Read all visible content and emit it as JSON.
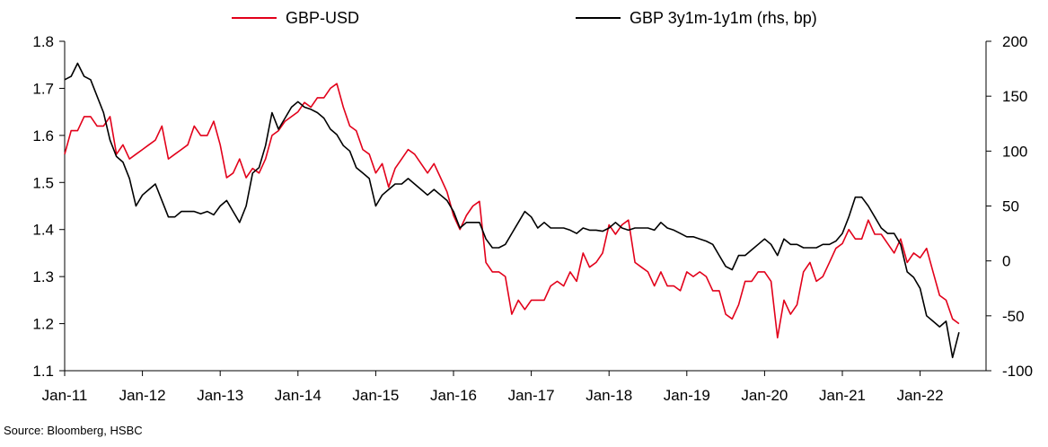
{
  "chart_data": {
    "type": "line",
    "title": "",
    "grid": false,
    "legend_position": "top-center",
    "x_range": [
      "2011-01",
      "2022-08"
    ],
    "x_ticks": [
      "Jan-11",
      "Jan-12",
      "Jan-13",
      "Jan-14",
      "Jan-15",
      "Jan-16",
      "Jan-17",
      "Jan-18",
      "Jan-19",
      "Jan-20",
      "Jan-21",
      "Jan-22"
    ],
    "y_left": {
      "label": "",
      "min": 1.1,
      "max": 1.8,
      "ticks": [
        "1.8",
        "1.7",
        "1.6",
        "1.5",
        "1.4",
        "1.3",
        "1.2",
        "1.1"
      ]
    },
    "y_right": {
      "label": "",
      "min": -100,
      "max": 200,
      "ticks": [
        "200",
        "150",
        "100",
        "50",
        "0",
        "-50",
        "-100"
      ]
    },
    "series": [
      {
        "name": "GBP-USD",
        "axis": "left",
        "color": "#e2001a",
        "points": [
          [
            "2011-01",
            1.56
          ],
          [
            "2011-02",
            1.61
          ],
          [
            "2011-03",
            1.61
          ],
          [
            "2011-04",
            1.64
          ],
          [
            "2011-05",
            1.64
          ],
          [
            "2011-06",
            1.62
          ],
          [
            "2011-07",
            1.62
          ],
          [
            "2011-08",
            1.64
          ],
          [
            "2011-09",
            1.56
          ],
          [
            "2011-10",
            1.58
          ],
          [
            "2011-11",
            1.55
          ],
          [
            "2011-12",
            1.56
          ],
          [
            "2012-01",
            1.57
          ],
          [
            "2012-02",
            1.58
          ],
          [
            "2012-03",
            1.59
          ],
          [
            "2012-04",
            1.62
          ],
          [
            "2012-05",
            1.55
          ],
          [
            "2012-06",
            1.56
          ],
          [
            "2012-07",
            1.57
          ],
          [
            "2012-08",
            1.58
          ],
          [
            "2012-09",
            1.62
          ],
          [
            "2012-10",
            1.6
          ],
          [
            "2012-11",
            1.6
          ],
          [
            "2012-12",
            1.63
          ],
          [
            "2013-01",
            1.58
          ],
          [
            "2013-02",
            1.51
          ],
          [
            "2013-03",
            1.52
          ],
          [
            "2013-04",
            1.55
          ],
          [
            "2013-05",
            1.51
          ],
          [
            "2013-06",
            1.53
          ],
          [
            "2013-07",
            1.52
          ],
          [
            "2013-08",
            1.55
          ],
          [
            "2013-09",
            1.6
          ],
          [
            "2013-10",
            1.61
          ],
          [
            "2013-11",
            1.63
          ],
          [
            "2013-12",
            1.64
          ],
          [
            "2014-01",
            1.65
          ],
          [
            "2014-02",
            1.67
          ],
          [
            "2014-03",
            1.66
          ],
          [
            "2014-04",
            1.68
          ],
          [
            "2014-05",
            1.68
          ],
          [
            "2014-06",
            1.7
          ],
          [
            "2014-07",
            1.71
          ],
          [
            "2014-08",
            1.66
          ],
          [
            "2014-09",
            1.62
          ],
          [
            "2014-10",
            1.61
          ],
          [
            "2014-11",
            1.57
          ],
          [
            "2014-12",
            1.56
          ],
          [
            "2015-01",
            1.52
          ],
          [
            "2015-02",
            1.54
          ],
          [
            "2015-03",
            1.49
          ],
          [
            "2015-04",
            1.53
          ],
          [
            "2015-05",
            1.55
          ],
          [
            "2015-06",
            1.57
          ],
          [
            "2015-07",
            1.56
          ],
          [
            "2015-08",
            1.54
          ],
          [
            "2015-09",
            1.52
          ],
          [
            "2015-10",
            1.54
          ],
          [
            "2015-11",
            1.51
          ],
          [
            "2015-12",
            1.48
          ],
          [
            "2016-01",
            1.43
          ],
          [
            "2016-02",
            1.4
          ],
          [
            "2016-03",
            1.43
          ],
          [
            "2016-04",
            1.45
          ],
          [
            "2016-05",
            1.46
          ],
          [
            "2016-06",
            1.33
          ],
          [
            "2016-07",
            1.31
          ],
          [
            "2016-08",
            1.31
          ],
          [
            "2016-09",
            1.3
          ],
          [
            "2016-10",
            1.22
          ],
          [
            "2016-11",
            1.25
          ],
          [
            "2016-12",
            1.23
          ],
          [
            "2017-01",
            1.25
          ],
          [
            "2017-02",
            1.25
          ],
          [
            "2017-03",
            1.25
          ],
          [
            "2017-04",
            1.28
          ],
          [
            "2017-05",
            1.29
          ],
          [
            "2017-06",
            1.28
          ],
          [
            "2017-07",
            1.31
          ],
          [
            "2017-08",
            1.29
          ],
          [
            "2017-09",
            1.35
          ],
          [
            "2017-10",
            1.32
          ],
          [
            "2017-11",
            1.33
          ],
          [
            "2017-12",
            1.35
          ],
          [
            "2018-01",
            1.41
          ],
          [
            "2018-02",
            1.39
          ],
          [
            "2018-03",
            1.41
          ],
          [
            "2018-04",
            1.42
          ],
          [
            "2018-05",
            1.33
          ],
          [
            "2018-06",
            1.32
          ],
          [
            "2018-07",
            1.31
          ],
          [
            "2018-08",
            1.28
          ],
          [
            "2018-09",
            1.31
          ],
          [
            "2018-10",
            1.28
          ],
          [
            "2018-11",
            1.28
          ],
          [
            "2018-12",
            1.27
          ],
          [
            "2019-01",
            1.31
          ],
          [
            "2019-02",
            1.3
          ],
          [
            "2019-03",
            1.31
          ],
          [
            "2019-04",
            1.3
          ],
          [
            "2019-05",
            1.27
          ],
          [
            "2019-06",
            1.27
          ],
          [
            "2019-07",
            1.22
          ],
          [
            "2019-08",
            1.21
          ],
          [
            "2019-09",
            1.24
          ],
          [
            "2019-10",
            1.29
          ],
          [
            "2019-11",
            1.29
          ],
          [
            "2019-12",
            1.31
          ],
          [
            "2020-01",
            1.31
          ],
          [
            "2020-02",
            1.29
          ],
          [
            "2020-03",
            1.17
          ],
          [
            "2020-04",
            1.25
          ],
          [
            "2020-05",
            1.22
          ],
          [
            "2020-06",
            1.24
          ],
          [
            "2020-07",
            1.31
          ],
          [
            "2020-08",
            1.33
          ],
          [
            "2020-09",
            1.29
          ],
          [
            "2020-10",
            1.3
          ],
          [
            "2020-11",
            1.33
          ],
          [
            "2020-12",
            1.36
          ],
          [
            "2021-01",
            1.37
          ],
          [
            "2021-02",
            1.4
          ],
          [
            "2021-03",
            1.38
          ],
          [
            "2021-04",
            1.38
          ],
          [
            "2021-05",
            1.42
          ],
          [
            "2021-06",
            1.39
          ],
          [
            "2021-07",
            1.39
          ],
          [
            "2021-08",
            1.37
          ],
          [
            "2021-09",
            1.35
          ],
          [
            "2021-10",
            1.38
          ],
          [
            "2021-11",
            1.33
          ],
          [
            "2021-12",
            1.35
          ],
          [
            "2022-01",
            1.34
          ],
          [
            "2022-02",
            1.36
          ],
          [
            "2022-03",
            1.31
          ],
          [
            "2022-04",
            1.26
          ],
          [
            "2022-05",
            1.25
          ],
          [
            "2022-06",
            1.21
          ],
          [
            "2022-07",
            1.2
          ]
        ]
      },
      {
        "name": "GBP 3y1m-1y1m (rhs, bp)",
        "axis": "right",
        "color": "#000000",
        "points": [
          [
            "2011-01",
            165
          ],
          [
            "2011-02",
            168
          ],
          [
            "2011-03",
            180
          ],
          [
            "2011-04",
            168
          ],
          [
            "2011-05",
            165
          ],
          [
            "2011-06",
            150
          ],
          [
            "2011-07",
            135
          ],
          [
            "2011-08",
            110
          ],
          [
            "2011-09",
            95
          ],
          [
            "2011-10",
            90
          ],
          [
            "2011-11",
            75
          ],
          [
            "2011-12",
            50
          ],
          [
            "2012-01",
            60
          ],
          [
            "2012-02",
            65
          ],
          [
            "2012-03",
            70
          ],
          [
            "2012-04",
            55
          ],
          [
            "2012-05",
            40
          ],
          [
            "2012-06",
            40
          ],
          [
            "2012-07",
            45
          ],
          [
            "2012-08",
            45
          ],
          [
            "2012-09",
            45
          ],
          [
            "2012-10",
            43
          ],
          [
            "2012-11",
            45
          ],
          [
            "2012-12",
            42
          ],
          [
            "2013-01",
            50
          ],
          [
            "2013-02",
            55
          ],
          [
            "2013-03",
            45
          ],
          [
            "2013-04",
            35
          ],
          [
            "2013-05",
            50
          ],
          [
            "2013-06",
            80
          ],
          [
            "2013-07",
            85
          ],
          [
            "2013-08",
            105
          ],
          [
            "2013-09",
            135
          ],
          [
            "2013-10",
            120
          ],
          [
            "2013-11",
            130
          ],
          [
            "2013-12",
            140
          ],
          [
            "2014-01",
            145
          ],
          [
            "2014-02",
            140
          ],
          [
            "2014-03",
            138
          ],
          [
            "2014-04",
            135
          ],
          [
            "2014-05",
            130
          ],
          [
            "2014-06",
            120
          ],
          [
            "2014-07",
            115
          ],
          [
            "2014-08",
            105
          ],
          [
            "2014-09",
            100
          ],
          [
            "2014-10",
            85
          ],
          [
            "2014-11",
            80
          ],
          [
            "2014-12",
            75
          ],
          [
            "2015-01",
            50
          ],
          [
            "2015-02",
            60
          ],
          [
            "2015-03",
            65
          ],
          [
            "2015-04",
            70
          ],
          [
            "2015-05",
            70
          ],
          [
            "2015-06",
            75
          ],
          [
            "2015-07",
            70
          ],
          [
            "2015-08",
            65
          ],
          [
            "2015-09",
            60
          ],
          [
            "2015-10",
            65
          ],
          [
            "2015-11",
            60
          ],
          [
            "2015-12",
            55
          ],
          [
            "2016-01",
            45
          ],
          [
            "2016-02",
            30
          ],
          [
            "2016-03",
            35
          ],
          [
            "2016-04",
            35
          ],
          [
            "2016-05",
            35
          ],
          [
            "2016-06",
            20
          ],
          [
            "2016-07",
            12
          ],
          [
            "2016-08",
            12
          ],
          [
            "2016-09",
            15
          ],
          [
            "2016-10",
            25
          ],
          [
            "2016-11",
            35
          ],
          [
            "2016-12",
            45
          ],
          [
            "2017-01",
            40
          ],
          [
            "2017-02",
            30
          ],
          [
            "2017-03",
            35
          ],
          [
            "2017-04",
            30
          ],
          [
            "2017-05",
            30
          ],
          [
            "2017-06",
            30
          ],
          [
            "2017-07",
            28
          ],
          [
            "2017-08",
            25
          ],
          [
            "2017-09",
            30
          ],
          [
            "2017-10",
            28
          ],
          [
            "2017-11",
            28
          ],
          [
            "2017-12",
            27
          ],
          [
            "2018-01",
            30
          ],
          [
            "2018-02",
            35
          ],
          [
            "2018-03",
            30
          ],
          [
            "2018-04",
            28
          ],
          [
            "2018-05",
            30
          ],
          [
            "2018-06",
            30
          ],
          [
            "2018-07",
            30
          ],
          [
            "2018-08",
            28
          ],
          [
            "2018-09",
            35
          ],
          [
            "2018-10",
            30
          ],
          [
            "2018-11",
            28
          ],
          [
            "2018-12",
            25
          ],
          [
            "2019-01",
            22
          ],
          [
            "2019-02",
            22
          ],
          [
            "2019-03",
            20
          ],
          [
            "2019-04",
            18
          ],
          [
            "2019-05",
            15
          ],
          [
            "2019-06",
            5
          ],
          [
            "2019-07",
            -5
          ],
          [
            "2019-08",
            -8
          ],
          [
            "2019-09",
            5
          ],
          [
            "2019-10",
            5
          ],
          [
            "2019-11",
            10
          ],
          [
            "2019-12",
            15
          ],
          [
            "2020-01",
            20
          ],
          [
            "2020-02",
            15
          ],
          [
            "2020-03",
            5
          ],
          [
            "2020-04",
            20
          ],
          [
            "2020-05",
            15
          ],
          [
            "2020-06",
            15
          ],
          [
            "2020-07",
            12
          ],
          [
            "2020-08",
            12
          ],
          [
            "2020-09",
            12
          ],
          [
            "2020-10",
            15
          ],
          [
            "2020-11",
            15
          ],
          [
            "2020-12",
            18
          ],
          [
            "2021-01",
            25
          ],
          [
            "2021-02",
            40
          ],
          [
            "2021-03",
            58
          ],
          [
            "2021-04",
            58
          ],
          [
            "2021-05",
            50
          ],
          [
            "2021-06",
            40
          ],
          [
            "2021-07",
            30
          ],
          [
            "2021-08",
            25
          ],
          [
            "2021-09",
            25
          ],
          [
            "2021-10",
            15
          ],
          [
            "2021-11",
            -10
          ],
          [
            "2021-12",
            -15
          ],
          [
            "2022-01",
            -25
          ],
          [
            "2022-02",
            -50
          ],
          [
            "2022-03",
            -55
          ],
          [
            "2022-04",
            -60
          ],
          [
            "2022-05",
            -55
          ],
          [
            "2022-06",
            -88
          ],
          [
            "2022-07",
            -65
          ]
        ]
      }
    ],
    "source": "Source: Bloomberg, HSBC"
  }
}
